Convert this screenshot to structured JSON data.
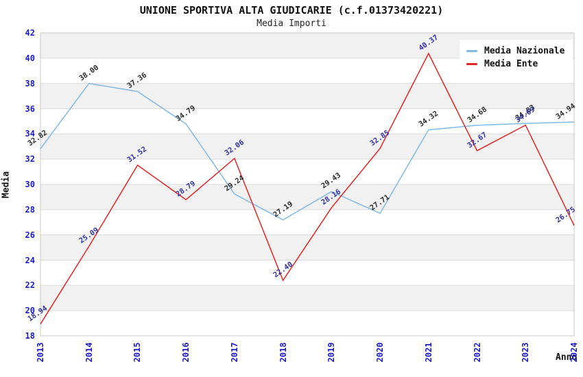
{
  "header": {
    "title": "UNIONE SPORTIVA ALTA GIUDICARIE (c.f.01373420221)",
    "subtitle": "Media Importi"
  },
  "axes": {
    "y_label": "Media",
    "x_label": "Anno"
  },
  "colors": {
    "band_gray": "#f1f1f1",
    "band_white": "#ffffff",
    "grid_line": "#dcdcdc",
    "plot_border": "#c8c8c8",
    "tick_text": "#1a1acd"
  },
  "chart_data": {
    "type": "line",
    "title": "UNIONE SPORTIVA ALTA GIUDICARIE (c.f.01373420221)",
    "subtitle": "Media Importi",
    "xlabel": "Anno",
    "ylabel": "Media",
    "ylim": [
      18,
      42
    ],
    "y_tick_step": 2,
    "grid": true,
    "legend_position": "top-right",
    "categories": [
      "2013",
      "2014",
      "2015",
      "2016",
      "2017",
      "2018",
      "2019",
      "2020",
      "2021",
      "2022",
      "2023",
      "2024"
    ],
    "series": [
      {
        "name": "Media Nazionale",
        "color": "#7fb9e8",
        "label_color": "#2b2b2b",
        "values": [
          32.82,
          38.0,
          37.36,
          34.79,
          29.24,
          27.19,
          29.43,
          27.71,
          34.32,
          34.68,
          34.83,
          34.94
        ]
      },
      {
        "name": "Media Ente",
        "color": "#e62323",
        "label_color": "#3232a8",
        "values": [
          18.94,
          25.09,
          31.52,
          28.79,
          32.06,
          22.4,
          28.16,
          32.85,
          40.37,
          32.67,
          34.69,
          26.75
        ]
      }
    ]
  }
}
